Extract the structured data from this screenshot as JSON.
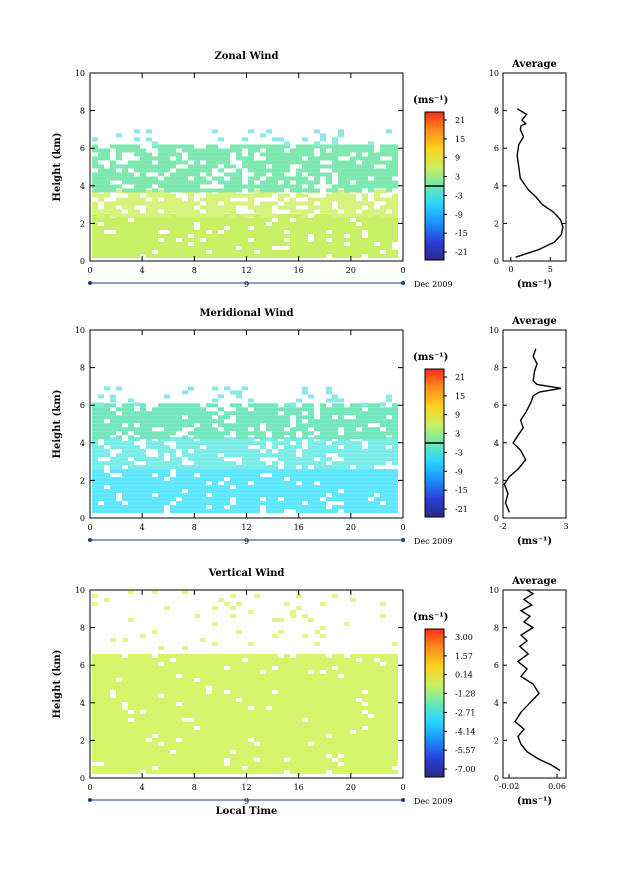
{
  "chart_data": [
    {
      "type": "heatmap",
      "title": "Zonal Wind",
      "ylabel": "Height (km)",
      "xticks": [
        "0",
        "4",
        "8",
        "12",
        "16",
        "20",
        "0"
      ],
      "yticks": [
        "0",
        "2",
        "4",
        "6",
        "8",
        "10"
      ],
      "xlim": [
        0,
        24
      ],
      "ylim": [
        0,
        10
      ],
      "date_marker": "9",
      "date_label": "Dec 2009",
      "colorbar": {
        "unit_label": "(ms⁻¹)",
        "ticks": [
          "21",
          "15",
          "9",
          "3",
          "-3",
          "-9",
          "-15",
          "-21"
        ],
        "zero_line": true
      },
      "description_bands": [
        {
          "ylo": 0.3,
          "yhi": 2.5,
          "color": "#c8f064",
          "cover": 0.9
        },
        {
          "ylo": 2.5,
          "yhi": 3.8,
          "color": "#d6f27a",
          "cover": 0.7
        },
        {
          "ylo": 3.8,
          "yhi": 6.2,
          "color": "#7ee8b0",
          "cover": 0.78
        },
        {
          "ylo": 6.2,
          "yhi": 7.0,
          "color": "#8be8e8",
          "cover": 0.12
        }
      ],
      "profile": {
        "title": "Average",
        "xticks": [
          "0",
          "5"
        ],
        "xlim": [
          -1,
          7
        ],
        "ylim": [
          0,
          10
        ],
        "yticks": [
          "0",
          "2",
          "4",
          "6",
          "8",
          "10"
        ],
        "xlabel": "(ms⁻¹)",
        "x": [
          0.6,
          3.5,
          5.5,
          6.4,
          6.6,
          6.3,
          5.4,
          4.0,
          3.2,
          2.2,
          1.2,
          1.0,
          0.8,
          1.0,
          1.6,
          1.2,
          1.3,
          1.9,
          1.4,
          2.0,
          0.8
        ],
        "y": [
          0.2,
          0.6,
          1.0,
          1.4,
          1.8,
          2.2,
          2.6,
          3.0,
          3.4,
          3.8,
          4.4,
          5.0,
          5.6,
          6.2,
          6.6,
          7.0,
          7.2,
          7.3,
          7.5,
          7.8,
          8.1
        ]
      }
    },
    {
      "type": "heatmap",
      "title": "Meridional Wind",
      "ylabel": "Height (km)",
      "xticks": [
        "0",
        "4",
        "8",
        "12",
        "16",
        "20",
        "0"
      ],
      "yticks": [
        "0",
        "2",
        "4",
        "6",
        "8",
        "10"
      ],
      "xlim": [
        0,
        24
      ],
      "ylim": [
        0,
        10
      ],
      "date_marker": "9",
      "date_label": "Dec 2009",
      "colorbar": {
        "unit_label": "(ms⁻¹)",
        "ticks": [
          "21",
          "15",
          "9",
          "3",
          "-3",
          "-9",
          "-15",
          "-21"
        ],
        "zero_line": true
      },
      "description_bands": [
        {
          "ylo": 0.3,
          "yhi": 2.6,
          "color": "#5ee6ff",
          "cover": 0.9
        },
        {
          "ylo": 2.6,
          "yhi": 4.3,
          "color": "#7aece8",
          "cover": 0.85
        },
        {
          "ylo": 4.3,
          "yhi": 6.1,
          "color": "#74e6bc",
          "cover": 0.82
        },
        {
          "ylo": 6.1,
          "yhi": 7.0,
          "color": "#8be8e8",
          "cover": 0.15
        }
      ],
      "profile": {
        "title": "Average",
        "xticks": [
          "-2",
          "3"
        ],
        "xlim": [
          -2,
          3
        ],
        "ylim": [
          0,
          10
        ],
        "yticks": [
          "0",
          "2",
          "4",
          "6",
          "8",
          "10"
        ],
        "xlabel": "(ms⁻¹)",
        "x": [
          -1.5,
          -1.8,
          -1.6,
          -1.9,
          -1.5,
          -0.8,
          -0.2,
          -0.6,
          -1.2,
          -0.8,
          -0.4,
          -0.6,
          -0.2,
          0.1,
          0.3,
          0.4,
          0.9,
          2.6,
          0.7,
          0.4,
          0.5,
          0.7,
          0.4,
          0.6
        ],
        "y": [
          0.3,
          0.8,
          1.3,
          1.8,
          2.2,
          2.6,
          3.1,
          3.6,
          4.0,
          4.4,
          4.8,
          5.2,
          5.6,
          6.0,
          6.3,
          6.5,
          6.7,
          6.9,
          7.1,
          7.3,
          7.8,
          8.2,
          8.6,
          9.0
        ]
      }
    },
    {
      "type": "heatmap",
      "title": "Vertical Wind",
      "ylabel": "Height (km)",
      "xlabel": "Local Time",
      "xticks": [
        "0",
        "4",
        "8",
        "12",
        "16",
        "20",
        "0"
      ],
      "yticks": [
        "0",
        "2",
        "4",
        "6",
        "8",
        "10"
      ],
      "xlim": [
        0,
        24
      ],
      "ylim": [
        0,
        10
      ],
      "date_marker": "9",
      "date_label": "Dec 2009",
      "colorbar": {
        "unit_label": "(ms⁻¹)",
        "ticks": [
          "3.00",
          "1.57",
          "0.14",
          "-1.28",
          "-2.71",
          "-4.14",
          "-5.57",
          "-7.00"
        ],
        "zero_line": false
      },
      "description_bands": [
        {
          "ylo": 0.3,
          "yhi": 6.6,
          "color": "#d4f46a",
          "cover": 0.95
        },
        {
          "ylo": 6.6,
          "yhi": 10.0,
          "color": "#e2f48a",
          "cover": 0.05
        }
      ],
      "profile": {
        "title": "Average",
        "xticks": [
          "-0.02",
          "0.06"
        ],
        "xlim": [
          -0.03,
          0.075
        ],
        "ylim": [
          0,
          10
        ],
        "yticks": [
          "0",
          "2",
          "4",
          "6",
          "8",
          "10"
        ],
        "xlabel": "(ms⁻¹)",
        "x": [
          0.065,
          0.05,
          0.03,
          0.01,
          0.0,
          -0.005,
          0.005,
          -0.01,
          0.0,
          0.015,
          0.03,
          0.02,
          0.0,
          0.01,
          -0.005,
          0.012,
          -0.002,
          0.01,
          0.0,
          0.02,
          0.005,
          0.015,
          0.0,
          0.018,
          0.005,
          0.02,
          0.01
        ],
        "y": [
          0.4,
          0.7,
          1.0,
          1.4,
          1.8,
          2.2,
          2.6,
          3.0,
          3.5,
          4.0,
          4.5,
          5.0,
          5.4,
          5.8,
          6.2,
          6.6,
          7.0,
          7.3,
          7.6,
          8.0,
          8.3,
          8.6,
          8.9,
          9.2,
          9.5,
          9.8,
          10.0
        ]
      }
    }
  ]
}
